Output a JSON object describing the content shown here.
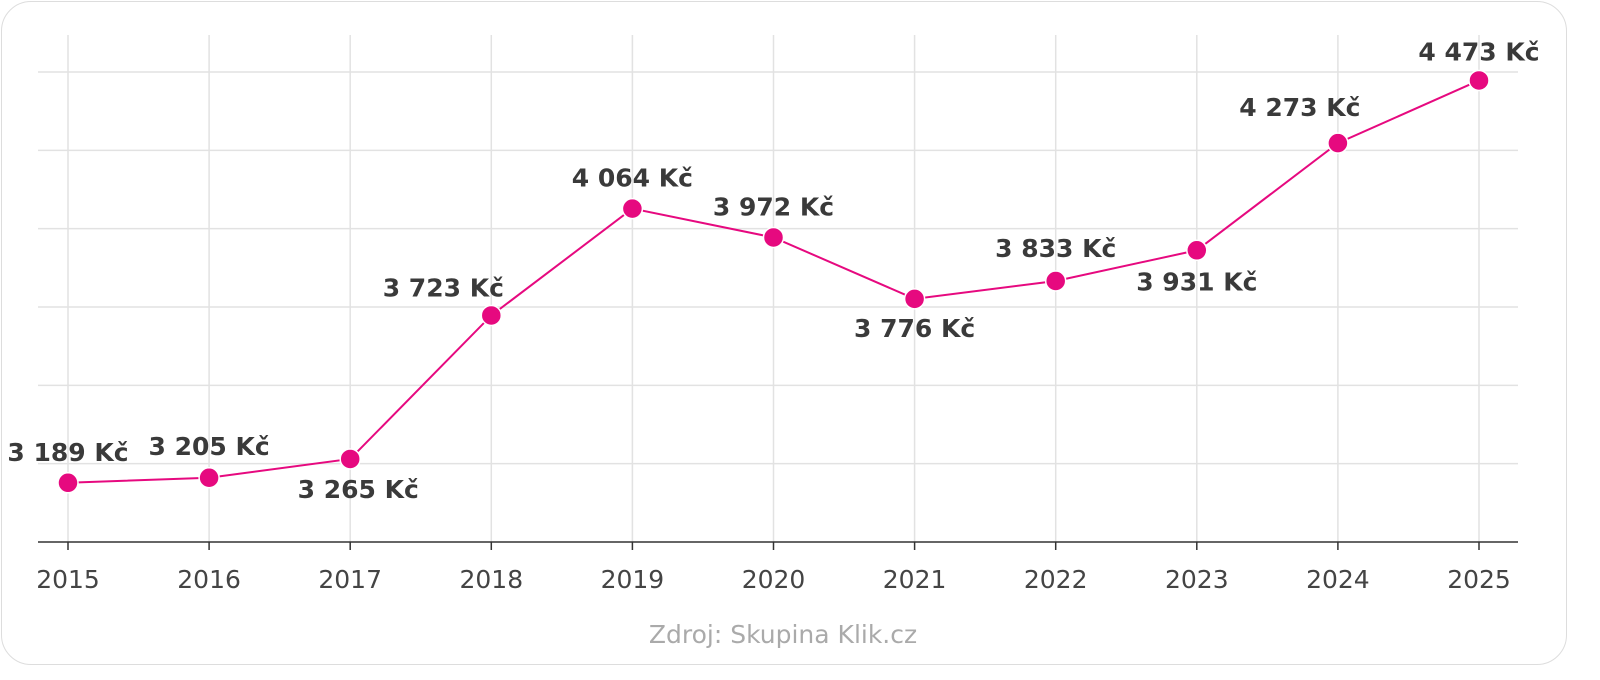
{
  "chart_data": {
    "type": "line",
    "categories": [
      "2015",
      "2016",
      "2017",
      "2018",
      "2019",
      "2020",
      "2021",
      "2022",
      "2023",
      "2024",
      "2025"
    ],
    "series": [
      {
        "color": "#e6097f",
        "values": [
          3189,
          3205,
          3265,
          3723,
          4064,
          3972,
          3776,
          3833,
          3931,
          4273,
          4473
        ],
        "value_labels": [
          "3 189 Kč",
          "3 205 Kč",
          "3 265 Kč",
          "3 723 Kč",
          "4 064 Kč",
          "3 972 Kč",
          "3 776 Kč",
          "3 833 Kč",
          "3 931 Kč",
          "4 273 Kč",
          "4 473 Kč"
        ]
      }
    ],
    "ylim": [
      3000,
      4500
    ],
    "yticks": [
      3000,
      3250,
      3500,
      3750,
      4000,
      4250,
      4500
    ],
    "grid": true,
    "source": "Zdroj: Skupina Klik.cz"
  }
}
